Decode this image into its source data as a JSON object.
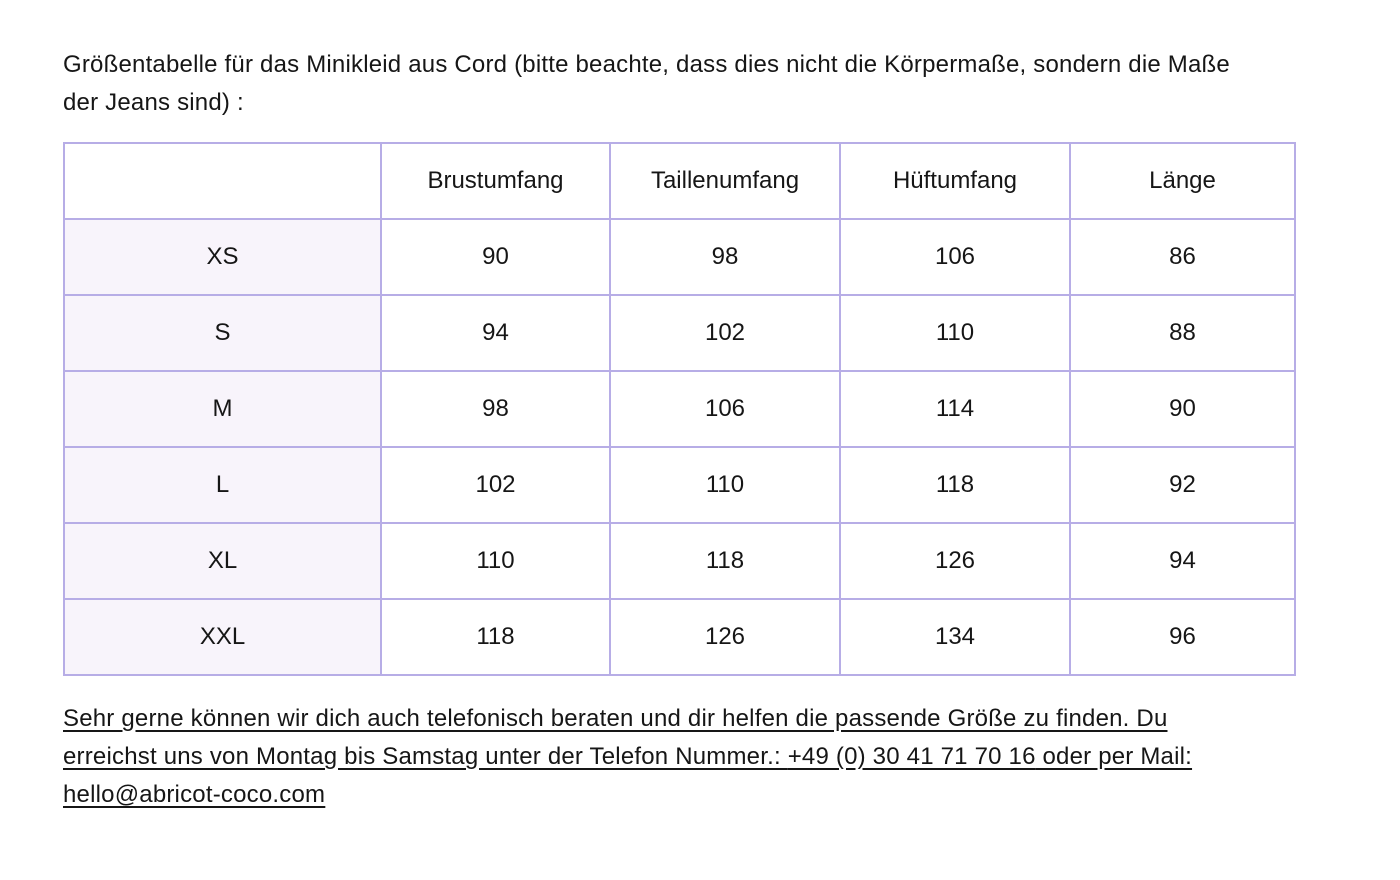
{
  "intro": {
    "text": "Größentabelle für das Minikleid aus Cord (bitte beachte, dass dies nicht die Körpermaße, sondern die Maße der Jeans sind) :"
  },
  "table": {
    "columns": [
      "",
      "Brustumfang",
      "Taillenumfang",
      "Hüftumfang",
      "Länge"
    ],
    "rows": [
      {
        "size": "XS",
        "values": [
          90,
          98,
          106,
          86
        ]
      },
      {
        "size": "S",
        "values": [
          94,
          102,
          110,
          88
        ]
      },
      {
        "size": "M",
        "values": [
          98,
          106,
          114,
          90
        ]
      },
      {
        "size": "L",
        "values": [
          102,
          110,
          118,
          92
        ]
      },
      {
        "size": "XL",
        "values": [
          110,
          118,
          126,
          94
        ]
      },
      {
        "size": "XXL",
        "values": [
          118,
          126,
          134,
          96
        ]
      }
    ]
  },
  "contact": {
    "text_intro": "Sehr gerne können wir dich auch telefonisch beraten und dir helfen die passende Größe zu finden. Du erreichst uns von Montag bis Samstag unter der Telefon Nummer.: ",
    "phone": "+49 (0) 30 41 71 70 16",
    "text_mail": " oder per Mail: ",
    "email": "hello@abricot-coco.com"
  },
  "colors": {
    "table_border": "#b7ade6",
    "size_column_bg": "#f8f4fb",
    "text": "#161616"
  }
}
